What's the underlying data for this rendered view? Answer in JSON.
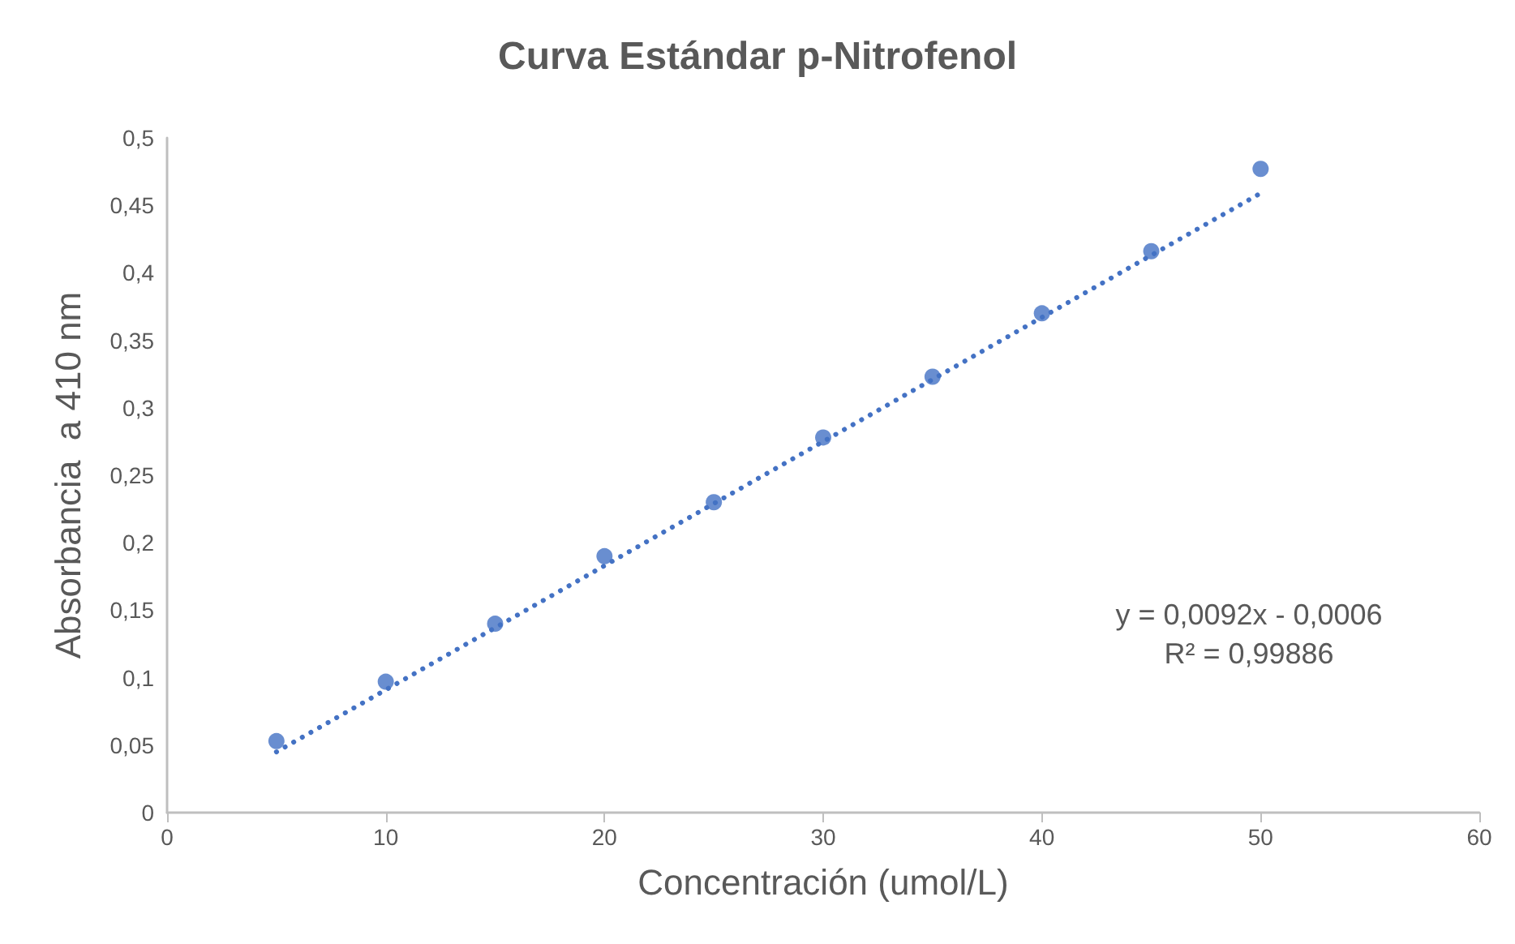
{
  "chart_data": {
    "type": "scatter",
    "title": "Curva Estándar p-Nitrofenol",
    "xlabel": "Concentración (umol/L)",
    "ylabel": "Absorbancia  a 410 nm",
    "x": [
      5,
      10,
      15,
      20,
      25,
      30,
      35,
      40,
      45,
      50
    ],
    "series": [
      {
        "type": "scatter",
        "color": "#4472c4",
        "marker": "circle",
        "values": [
          0.053,
          0.097,
          0.14,
          0.19,
          0.23,
          0.278,
          0.323,
          0.37,
          0.416,
          0.477
        ]
      },
      {
        "type": "line",
        "color": "#4472c4",
        "marker": "none",
        "line_style": "dotted",
        "x": [
          5,
          50
        ],
        "values": [
          0.045,
          0.459
        ]
      }
    ],
    "xlim": [
      0,
      60
    ],
    "xticks": [
      0,
      10,
      20,
      30,
      40,
      50,
      60
    ],
    "ylim": [
      0,
      0.5
    ],
    "yticks": [
      {
        "value": 0,
        "label": "0"
      },
      {
        "value": 0.05,
        "label": "0,05"
      },
      {
        "value": 0.1,
        "label": "0,1"
      },
      {
        "value": 0.15,
        "label": "0,15"
      },
      {
        "value": 0.2,
        "label": "0,2"
      },
      {
        "value": 0.25,
        "label": "0,25"
      },
      {
        "value": 0.3,
        "label": "0,3"
      },
      {
        "value": 0.35,
        "label": "0,35"
      },
      {
        "value": 0.4,
        "label": "0,4"
      },
      {
        "value": 0.45,
        "label": "0,45"
      },
      {
        "value": 0.5,
        "label": "0,5"
      }
    ],
    "grid": false,
    "annotations": [
      "y = 0,0092x - 0,0006",
      "R² = 0,99886"
    ]
  }
}
